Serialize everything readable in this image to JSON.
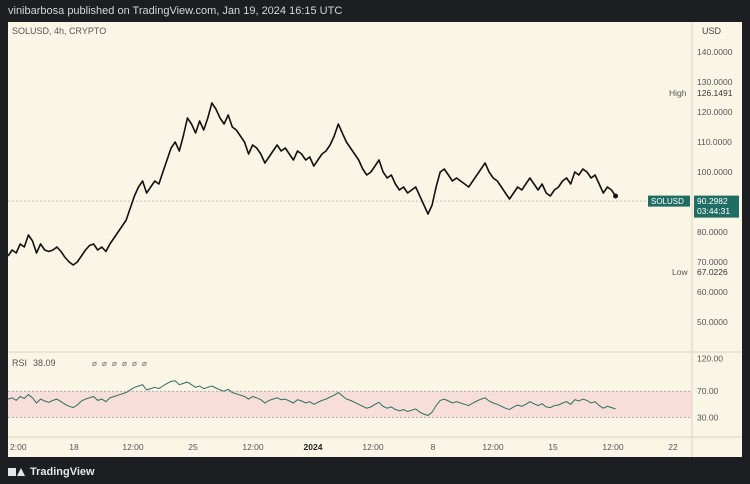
{
  "header": {
    "published": "vinibarbosa published on TradingView.com, Jan 19, 2024 16:15 UTC"
  },
  "branding": {
    "name": "TradingView"
  },
  "colors": {
    "panel_bg": "#fbf5e6",
    "line": "#111111",
    "rsi_line": "#2e6d64",
    "rsi_band": "#f5d6d3",
    "label_bg": "#1f6d63",
    "text": "#666666"
  },
  "chart_data": {
    "type": "line",
    "symbol_label": "SOLUSD, 4h, CRYPTO",
    "currency": "USD",
    "price_axis_ticks": [
      50,
      60,
      70,
      80,
      90,
      100,
      110,
      120,
      130,
      140
    ],
    "price_axis_tick_labels": [
      "50.0000",
      "60.0000",
      "70.0000",
      "80.0000",
      "90.0000",
      "100.0000",
      "110.0000",
      "120.0000",
      "130.0000",
      "140.0000"
    ],
    "ylim": [
      40,
      150
    ],
    "high": {
      "label": "High",
      "value": "126.1491"
    },
    "low": {
      "label": "Low",
      "value": "67.0226"
    },
    "last": {
      "symbol": "SOLUSD",
      "value": "90.2982",
      "countdown": "03:44:31",
      "price": 90.2982
    },
    "x_ticks": [
      "2:00",
      "18",
      "12:00",
      "25",
      "12:00",
      "2024",
      "12:00",
      "8",
      "12:00",
      "15",
      "12:00",
      "22"
    ],
    "x_range": [
      0,
      155
    ],
    "price_series": [
      72.0,
      74.0,
      73.0,
      76.0,
      75.0,
      79.0,
      77.0,
      73.0,
      76.0,
      74.0,
      73.5,
      74.0,
      75.0,
      73.5,
      71.5,
      70.0,
      69.0,
      70.0,
      72.0,
      74.0,
      75.5,
      76.0,
      74.0,
      75.0,
      73.5,
      76.0,
      78.0,
      80.0,
      82.0,
      84.0,
      88.0,
      92.0,
      95.0,
      97.0,
      93.0,
      95.0,
      97.0,
      96.0,
      100.0,
      104.0,
      108.0,
      110.0,
      107.0,
      112.0,
      118.0,
      116.0,
      113.0,
      117.0,
      114.0,
      118.0,
      123.0,
      121.0,
      118.0,
      116.0,
      119.0,
      115.0,
      114.0,
      112.0,
      110.0,
      106.0,
      109.0,
      108.0,
      106.0,
      103.0,
      105.0,
      107.0,
      109.0,
      107.0,
      108.0,
      106.0,
      104.0,
      107.0,
      106.0,
      104.0,
      105.0,
      102.0,
      104.0,
      106.0,
      107.0,
      109.0,
      112.0,
      116.0,
      113.0,
      110.0,
      108.0,
      106.0,
      104.0,
      101.0,
      99.0,
      100.0,
      102.0,
      104.0,
      100.0,
      98.0,
      99.0,
      96.0,
      94.0,
      95.0,
      93.0,
      94.0,
      95.0,
      92.0,
      89.0,
      86.0,
      89.0,
      95.0,
      100.0,
      101.0,
      99.0,
      97.0,
      98.0,
      97.0,
      96.0,
      95.0,
      97.0,
      99.0,
      101.0,
      103.0,
      100.0,
      98.0,
      97.0,
      95.0,
      93.0,
      91.0,
      93.0,
      95.0,
      94.0,
      96.0,
      98.0,
      96.0,
      94.0,
      96.0,
      93.0,
      92.0,
      94.0,
      95.0,
      97.0,
      98.0,
      96.0,
      100.0,
      99.0,
      101.0,
      100.0,
      98.0,
      99.0,
      96.0,
      93.0,
      95.0,
      94.0,
      92.0,
      90.3,
      90.3,
      90.3,
      90.3,
      90.3,
      90.3
    ],
    "rsi": {
      "label": "RSI",
      "value": "38.09",
      "axis_ticks": [
        30,
        70,
        120
      ],
      "axis_tick_labels": [
        "30.00",
        "70.00",
        "120.00"
      ],
      "ylim": [
        0,
        130
      ],
      "band": [
        30,
        70
      ],
      "markers": [
        "⌀",
        "⌀",
        "⌀",
        "⌀",
        "⌀",
        "⌀"
      ],
      "series": [
        58,
        60,
        56,
        62,
        59,
        65,
        60,
        52,
        58,
        55,
        53,
        56,
        58,
        54,
        50,
        47,
        45,
        49,
        55,
        58,
        60,
        62,
        56,
        58,
        54,
        60,
        62,
        64,
        66,
        68,
        72,
        76,
        78,
        80,
        72,
        74,
        76,
        74,
        78,
        82,
        85,
        86,
        80,
        82,
        84,
        80,
        76,
        78,
        74,
        76,
        78,
        75,
        72,
        70,
        73,
        68,
        66,
        64,
        62,
        58,
        62,
        60,
        57,
        52,
        56,
        58,
        60,
        57,
        58,
        55,
        52,
        57,
        55,
        52,
        54,
        50,
        53,
        56,
        58,
        61,
        64,
        68,
        63,
        58,
        56,
        53,
        50,
        47,
        44,
        46,
        50,
        53,
        47,
        44,
        46,
        42,
        40,
        42,
        39,
        41,
        43,
        38,
        35,
        33,
        38,
        48,
        56,
        58,
        55,
        52,
        54,
        52,
        50,
        48,
        52,
        55,
        58,
        60,
        55,
        52,
        50,
        47,
        44,
        42,
        46,
        49,
        47,
        50,
        54,
        51,
        48,
        51,
        46,
        45,
        48,
        49,
        52,
        54,
        50,
        57,
        55,
        58,
        56,
        52,
        54,
        48,
        44,
        47,
        45,
        43,
        40,
        40,
        40,
        40,
        40,
        40
      ]
    }
  }
}
